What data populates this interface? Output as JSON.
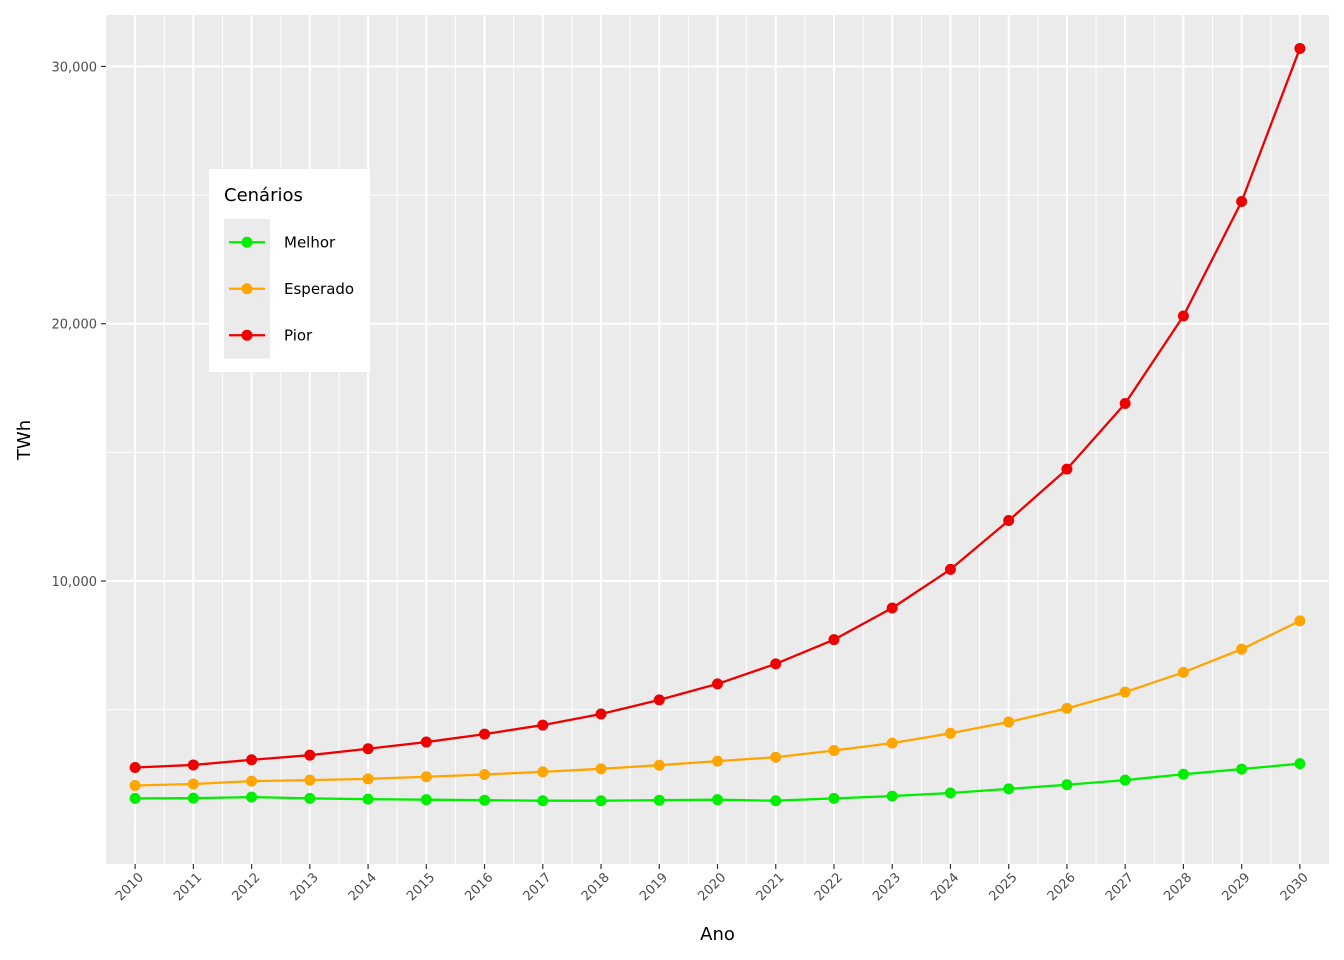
{
  "chart_data": {
    "type": "line",
    "xlabel": "Ano",
    "ylabel": "TWh",
    "x": [
      2010,
      2011,
      2012,
      2013,
      2014,
      2015,
      2016,
      2017,
      2018,
      2019,
      2020,
      2021,
      2022,
      2023,
      2024,
      2025,
      2026,
      2027,
      2028,
      2029,
      2030
    ],
    "x_tick_labels": [
      "2010",
      "2011",
      "2012",
      "2013",
      "2014",
      "2015",
      "2016",
      "2017",
      "2018",
      "2019",
      "2020",
      "2021",
      "2022",
      "2023",
      "2024",
      "2025",
      "2026",
      "2027",
      "2028",
      "2029",
      "2030"
    ],
    "y_ticks": [
      10000,
      20000,
      30000
    ],
    "y_tick_labels": [
      "10,000",
      "20,000",
      "30,000"
    ],
    "xlim": [
      2009.5,
      2030.5
    ],
    "ylim": [
      -1000,
      32000
    ],
    "grid": true,
    "legend": {
      "title": "Cenários",
      "placement": "top-left"
    },
    "series": [
      {
        "name": "Melhor",
        "color": "#00ee00",
        "values": [
          1550,
          1560,
          1600,
          1550,
          1520,
          1500,
          1480,
          1460,
          1460,
          1480,
          1500,
          1460,
          1550,
          1640,
          1760,
          1920,
          2080,
          2260,
          2490,
          2690,
          2900
        ]
      },
      {
        "name": "Esperado",
        "color": "#ffa500",
        "values": [
          2050,
          2110,
          2220,
          2260,
          2310,
          2390,
          2480,
          2580,
          2700,
          2840,
          3000,
          3150,
          3410,
          3700,
          4080,
          4520,
          5050,
          5680,
          6450,
          7350,
          8450
        ]
      },
      {
        "name": "Pior",
        "color": "#ee0000",
        "values": [
          2750,
          2850,
          3050,
          3230,
          3480,
          3740,
          4050,
          4400,
          4830,
          5380,
          6000,
          6780,
          7720,
          8950,
          10450,
          12350,
          14350,
          16900,
          20300,
          24750,
          30700
        ]
      }
    ]
  }
}
